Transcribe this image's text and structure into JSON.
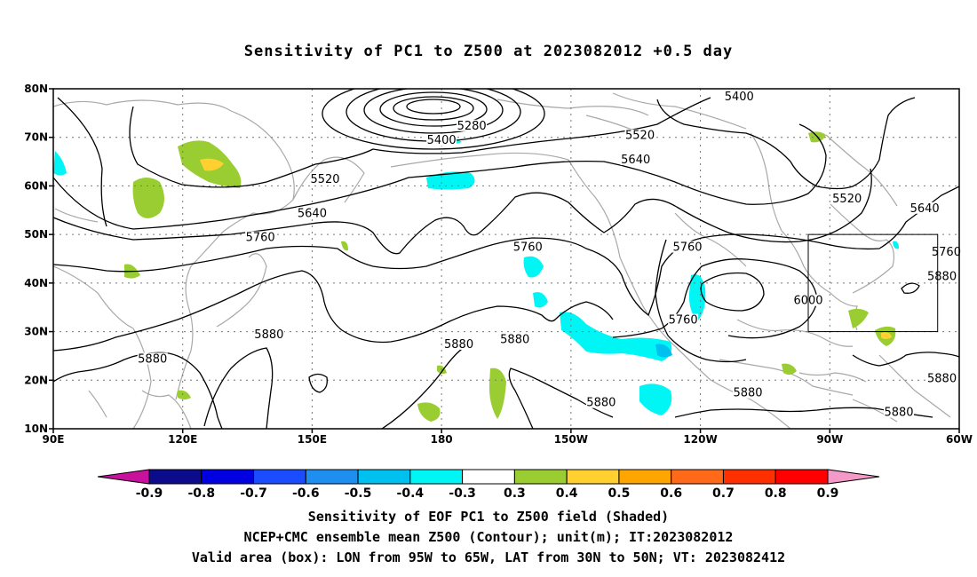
{
  "title": "Sensitivity of PC1 to Z500 at 2023082012 +0.5 day",
  "map": {
    "lon_range": [
      90,
      300
    ],
    "lat_range": [
      10,
      80
    ],
    "lat_ticks": [
      {
        "value": 80,
        "label": "80N"
      },
      {
        "value": 70,
        "label": "70N"
      },
      {
        "value": 60,
        "label": "60N"
      },
      {
        "value": 50,
        "label": "50N"
      },
      {
        "value": 40,
        "label": "40N"
      },
      {
        "value": 30,
        "label": "30N"
      },
      {
        "value": 20,
        "label": "20N"
      },
      {
        "value": 10,
        "label": "10N"
      }
    ],
    "lon_ticks": [
      {
        "value": 90,
        "label": "90E"
      },
      {
        "value": 120,
        "label": "120E"
      },
      {
        "value": 150,
        "label": "150E"
      },
      {
        "value": 180,
        "label": "180"
      },
      {
        "value": 210,
        "label": "150W"
      },
      {
        "value": 240,
        "label": "120W"
      },
      {
        "value": 270,
        "label": "90W"
      },
      {
        "value": 300,
        "label": "60W"
      }
    ],
    "grid": true,
    "valid_box": {
      "lon": [
        265,
        295
      ],
      "lat": [
        30,
        50
      ]
    },
    "contour_labels": [
      {
        "text": "5400",
        "lon": 249,
        "lat": 78
      },
      {
        "text": "5280",
        "lon": 187,
        "lat": 72
      },
      {
        "text": "5400",
        "lon": 180,
        "lat": 69
      },
      {
        "text": "5520",
        "lon": 226,
        "lat": 70
      },
      {
        "text": "5640",
        "lon": 225,
        "lat": 65
      },
      {
        "text": "5520",
        "lon": 153,
        "lat": 61
      },
      {
        "text": "5520",
        "lon": 274,
        "lat": 57
      },
      {
        "text": "5640",
        "lon": 292,
        "lat": 55
      },
      {
        "text": "5640",
        "lon": 150,
        "lat": 54
      },
      {
        "text": "5760",
        "lon": 138,
        "lat": 49
      },
      {
        "text": "5760",
        "lon": 200,
        "lat": 47
      },
      {
        "text": "5760",
        "lon": 237,
        "lat": 47
      },
      {
        "text": "5760",
        "lon": 297,
        "lat": 46
      },
      {
        "text": "5880",
        "lon": 296,
        "lat": 41
      },
      {
        "text": "6000",
        "lon": 265,
        "lat": 36
      },
      {
        "text": "5760",
        "lon": 236,
        "lat": 32
      },
      {
        "text": "5880",
        "lon": 140,
        "lat": 29
      },
      {
        "text": "5880",
        "lon": 184,
        "lat": 27
      },
      {
        "text": "5880",
        "lon": 197,
        "lat": 28
      },
      {
        "text": "5880",
        "lon": 113,
        "lat": 24
      },
      {
        "text": "5880",
        "lon": 296,
        "lat": 20
      },
      {
        "text": "5880",
        "lon": 217,
        "lat": 15
      },
      {
        "text": "5880",
        "lon": 251,
        "lat": 17
      },
      {
        "text": "5880",
        "lon": 286,
        "lat": 13
      }
    ]
  },
  "colorbar": {
    "labels": [
      "-0.9",
      "-0.8",
      "-0.7",
      "-0.6",
      "-0.5",
      "-0.4",
      "-0.3",
      "0.3",
      "0.4",
      "0.5",
      "0.6",
      "0.7",
      "0.8",
      "0.9"
    ],
    "colors": [
      "#0b0b8c",
      "#0000e0",
      "#1c4cff",
      "#1e8ef0",
      "#00c0f0",
      "#00f5f5",
      "#ffffff",
      "#9acd32",
      "#ffd030",
      "#ffa500",
      "#ff6a1a",
      "#ff3000",
      "#ff0000"
    ],
    "low_end_color": "#c8129e",
    "high_end_color": "#f59ac8"
  },
  "shading_colors": {
    "cyan": "#00f5f5",
    "light_cyan": "#00c0f0",
    "green": "#9acd32",
    "yellow": "#ffd030"
  },
  "captions": {
    "line1": "Sensitivity of EOF PC1 to Z500 field (Shaded)",
    "line2": "NCEP+CMC ensemble mean Z500 (Contour); unit(m); IT:2023082012",
    "line3": "Valid area (box): LON from 95W to 65W, LAT from 30N to 50N; VT: 2023082412"
  }
}
